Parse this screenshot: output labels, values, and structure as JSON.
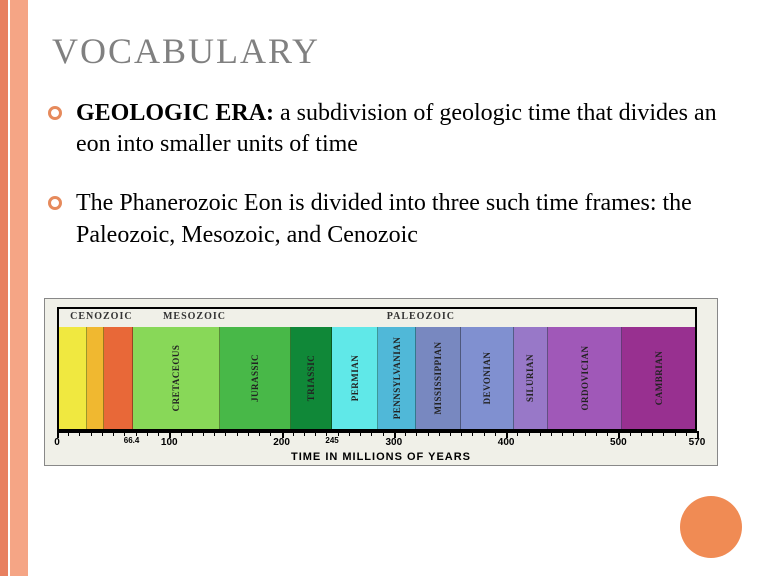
{
  "title": "VOCABULARY",
  "bullets": [
    {
      "term": "GEOLOGIC ERA:",
      "def": "  a subdivision of geologic time that divides an eon into smaller units of time"
    },
    {
      "term": "",
      "def": "The Phanerozoic Eon is divided into three such time frames: the Paleozoic, Mesozoic, and Cenozoic"
    }
  ],
  "decor": {
    "stripe1_color": "#e88060",
    "stripe2_color": "#f5a585",
    "circle_color": "#f08b54",
    "bullet_color": "#e68a5c"
  },
  "chart": {
    "type": "timeline-bar",
    "xmin": 0,
    "xmax": 570,
    "axis_title": "TIME IN MILLIONS OF YEARS",
    "era_groups": [
      {
        "label": "CENOZOIC",
        "start": 0,
        "end": 66.4
      },
      {
        "label": "MESOZOIC",
        "start": 66.4,
        "end": 245
      },
      {
        "label": "PALEOZOIC",
        "start": 245,
        "end": 570
      }
    ],
    "periods": [
      {
        "label": "",
        "start": 0,
        "end": 25,
        "color": "#f0e840"
      },
      {
        "label": "",
        "start": 25,
        "end": 40,
        "color": "#f0b830"
      },
      {
        "label": "",
        "start": 40,
        "end": 66.4,
        "color": "#e86838"
      },
      {
        "label": "CRETACEOUS",
        "start": 66.4,
        "end": 144,
        "color": "#88d858"
      },
      {
        "label": "JURASSIC",
        "start": 144,
        "end": 208,
        "color": "#48b848"
      },
      {
        "label": "TRIASSIC",
        "start": 208,
        "end": 245,
        "color": "#108838"
      },
      {
        "label": "PERMIAN",
        "start": 245,
        "end": 286,
        "color": "#60e8e8"
      },
      {
        "label": "PENNSYLVANIAN",
        "start": 286,
        "end": 320,
        "color": "#50b8d8"
      },
      {
        "label": "MISSISSIPPIAN",
        "start": 320,
        "end": 360,
        "color": "#7888c0"
      },
      {
        "label": "DEVONIAN",
        "start": 360,
        "end": 408,
        "color": "#8090d0"
      },
      {
        "label": "SILURIAN",
        "start": 408,
        "end": 438,
        "color": "#9878c8"
      },
      {
        "label": "ORDOVICIAN",
        "start": 438,
        "end": 505,
        "color": "#a058b8"
      },
      {
        "label": "CAMBRIAN",
        "start": 505,
        "end": 570,
        "color": "#983090"
      }
    ],
    "major_ticks": [
      0,
      100,
      200,
      300,
      400,
      500,
      570
    ],
    "minor_ticks": [
      66.4,
      245
    ],
    "minor_tick_step": 10,
    "background_color": "#f0f0e8",
    "border_color": "#000000",
    "label_font": "Comic Sans MS",
    "axis_font": "Arial"
  }
}
